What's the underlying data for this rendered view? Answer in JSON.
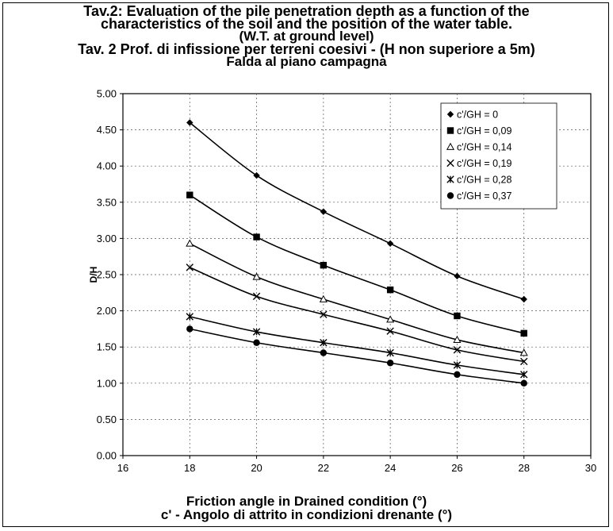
{
  "titles": {
    "line1": "Tav.2: Evaluation of the pile penetration depth as a function of the",
    "line2": "characteristics of the soil and the position of the water table.",
    "line3": "(W.T. at ground level)",
    "line4": "Tav. 2 Prof. di infissione per terreni coesivi - (H non superiore a 5m)",
    "line5": "Falda al piano campagna"
  },
  "chart_data": {
    "type": "line",
    "xlabel": "Friction angle in Drained condition (°)",
    "xlabel2": "c' - Angolo di attrito in condizioni drenante (°)",
    "ylabel": "D/H",
    "xlim": [
      16,
      30
    ],
    "ylim": [
      0,
      5
    ],
    "xticks": [
      "16",
      "18",
      "20",
      "22",
      "24",
      "26",
      "28",
      "30"
    ],
    "yticks": [
      "0.00",
      "0.50",
      "1.00",
      "1.50",
      "2.00",
      "2.50",
      "3.00",
      "3.50",
      "4.00",
      "4.50",
      "5.00"
    ],
    "grid": "dashed",
    "legend_position": "top-right",
    "x": [
      18,
      20,
      22,
      24,
      26,
      28
    ],
    "series": [
      {
        "name": "c'/GH = 0",
        "marker": "diamond",
        "values": [
          4.6,
          3.87,
          3.37,
          2.93,
          2.48,
          2.16
        ]
      },
      {
        "name": "c'/GH = 0,09",
        "marker": "square",
        "values": [
          3.6,
          3.02,
          2.63,
          2.29,
          1.93,
          1.69
        ]
      },
      {
        "name": "c'/GH = 0,14",
        "marker": "triangle",
        "values": [
          2.93,
          2.47,
          2.16,
          1.88,
          1.6,
          1.42
        ]
      },
      {
        "name": "c'/GH = 0,19",
        "marker": "x",
        "values": [
          2.6,
          2.2,
          1.95,
          1.72,
          1.46,
          1.3
        ]
      },
      {
        "name": "c'/GH = 0,28",
        "marker": "star",
        "values": [
          1.92,
          1.71,
          1.56,
          1.42,
          1.25,
          1.12
        ]
      },
      {
        "name": "c'/GH = 0,37",
        "marker": "circle",
        "values": [
          1.75,
          1.56,
          1.42,
          1.28,
          1.12,
          1.0
        ]
      }
    ]
  }
}
